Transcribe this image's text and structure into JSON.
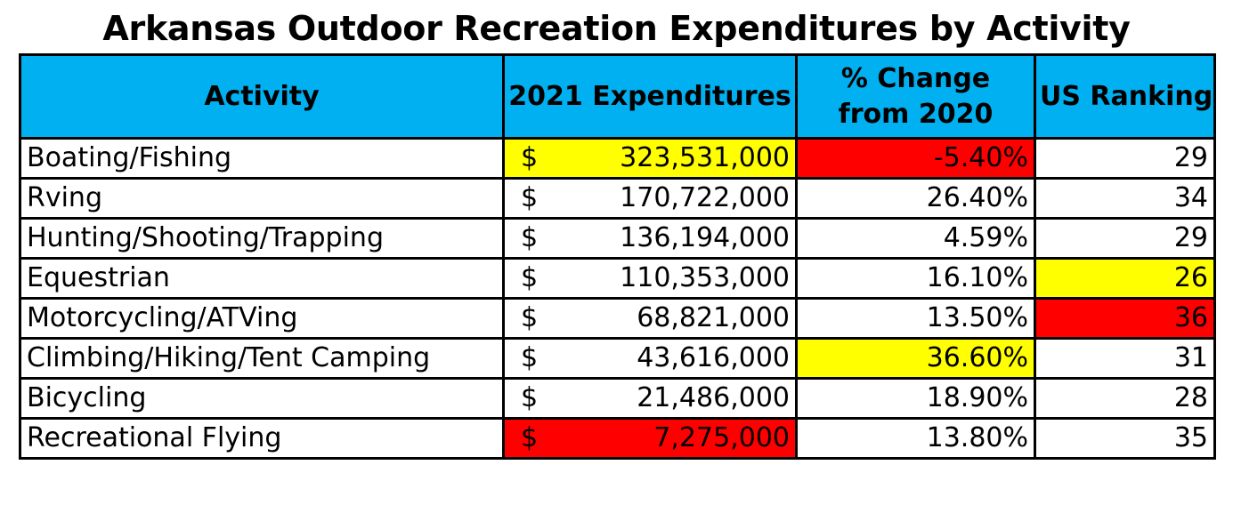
{
  "title": "Arkansas Outdoor Recreation Expenditures by Activity",
  "colors": {
    "header_bg": "#00b0f0",
    "highlight_yellow": "#ffff00",
    "highlight_red": "#ff0000"
  },
  "table": {
    "headers": {
      "activity": "Activity",
      "expenditures": "2021 Expenditures",
      "change": "% Change from 2020",
      "ranking": "US Ranking"
    },
    "currency_symbol": "$",
    "rows": [
      {
        "activity": "Boating/Fishing",
        "expenditures": "323,531,000",
        "change": "-5.40%",
        "ranking": "29",
        "exp_highlight": "yellow",
        "change_highlight": "red",
        "rank_highlight": ""
      },
      {
        "activity": "Rving",
        "expenditures": "170,722,000",
        "change": "26.40%",
        "ranking": "34",
        "exp_highlight": "",
        "change_highlight": "",
        "rank_highlight": ""
      },
      {
        "activity": "Hunting/Shooting/Trapping",
        "expenditures": "136,194,000",
        "change": "4.59%",
        "ranking": "29",
        "exp_highlight": "",
        "change_highlight": "",
        "rank_highlight": ""
      },
      {
        "activity": "Equestrian",
        "expenditures": "110,353,000",
        "change": "16.10%",
        "ranking": "26",
        "exp_highlight": "",
        "change_highlight": "",
        "rank_highlight": "yellow"
      },
      {
        "activity": "Motorcycling/ATVing",
        "expenditures": "68,821,000",
        "change": "13.50%",
        "ranking": "36",
        "exp_highlight": "",
        "change_highlight": "",
        "rank_highlight": "red"
      },
      {
        "activity": "Climbing/Hiking/Tent Camping",
        "expenditures": "43,616,000",
        "change": "36.60%",
        "ranking": "31",
        "exp_highlight": "",
        "change_highlight": "yellow",
        "rank_highlight": ""
      },
      {
        "activity": "Bicycling",
        "expenditures": "21,486,000",
        "change": "18.90%",
        "ranking": "28",
        "exp_highlight": "",
        "change_highlight": "",
        "rank_highlight": ""
      },
      {
        "activity": "Recreational Flying",
        "expenditures": "7,275,000",
        "change": "13.80%",
        "ranking": "35",
        "exp_highlight": "red",
        "change_highlight": "",
        "rank_highlight": ""
      }
    ]
  }
}
